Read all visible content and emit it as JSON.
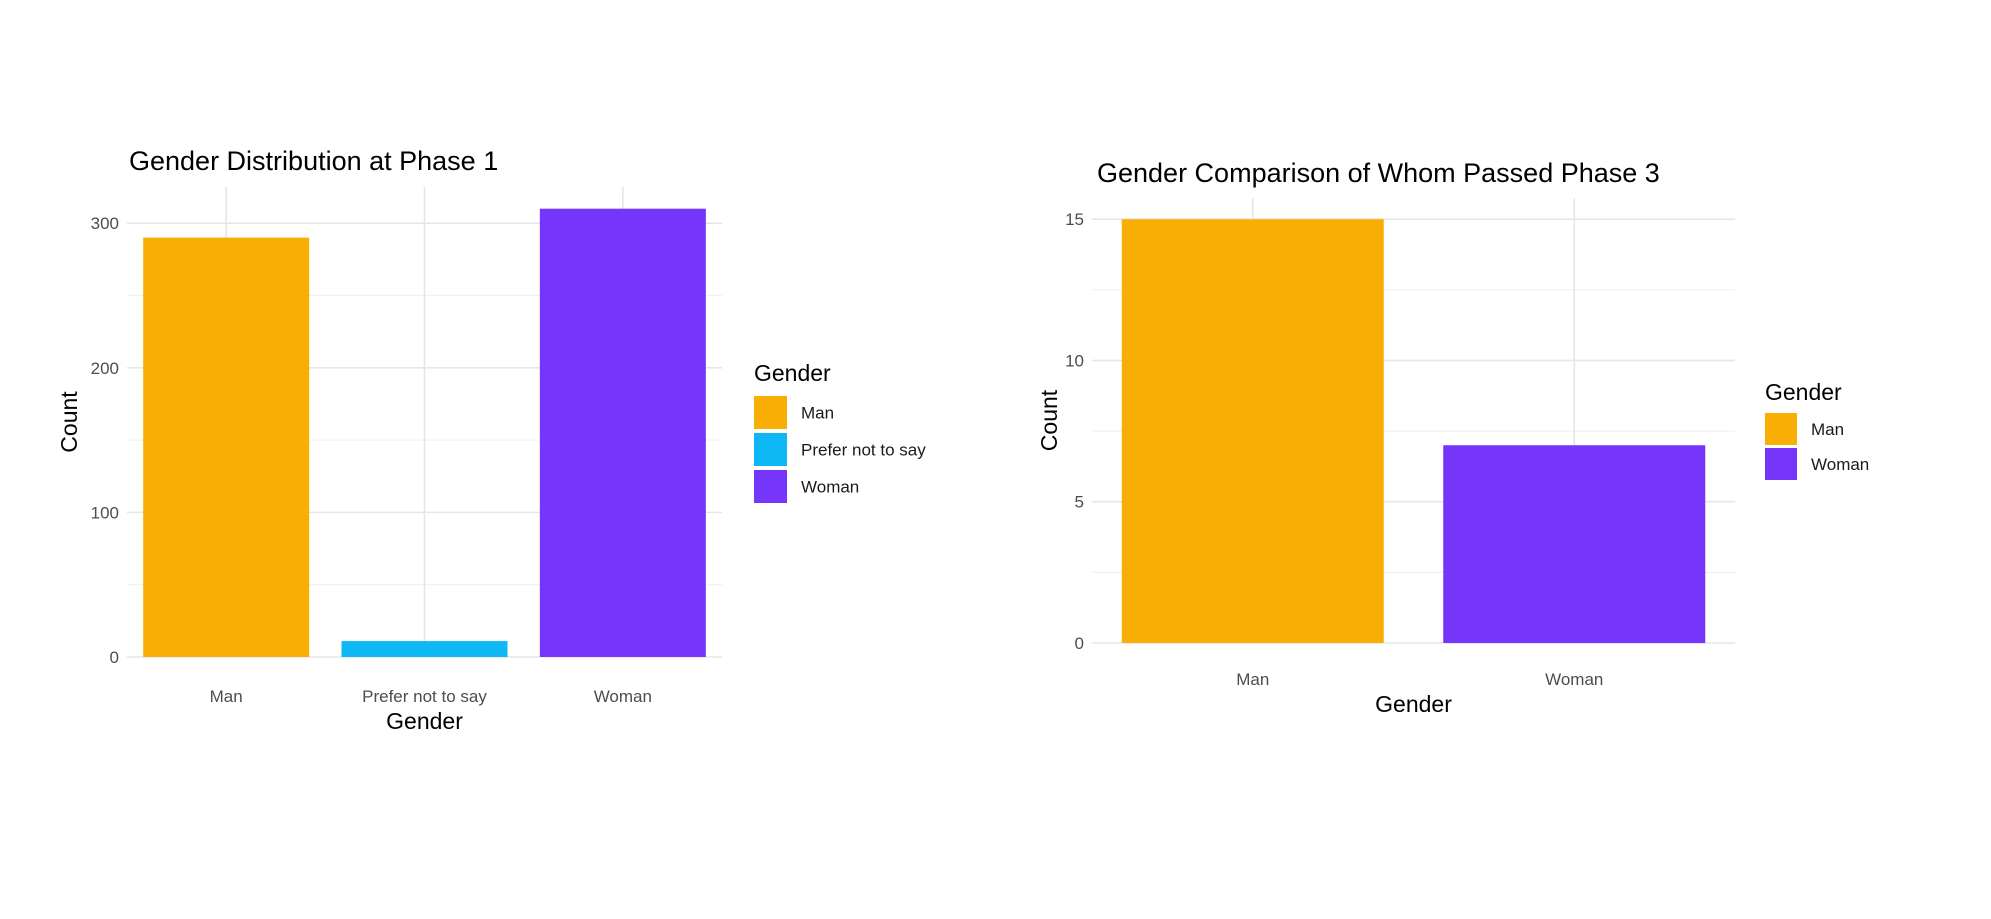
{
  "chart_data": [
    {
      "type": "bar",
      "title": "Gender Distribution at Phase 1",
      "xlabel": "Gender",
      "ylabel": "Count",
      "categories": [
        "Man",
        "Prefer not to say",
        "Woman"
      ],
      "values": [
        290,
        11,
        310
      ],
      "colors": [
        "#F9AE06",
        "#0DB8F5",
        "#7535FB"
      ],
      "ylim": [
        0,
        325
      ],
      "yticks": [
        0,
        100,
        200,
        300
      ],
      "grid": true,
      "legend": {
        "title": "Gender",
        "position": "right",
        "entries": [
          "Man",
          "Prefer not to say",
          "Woman"
        ]
      }
    },
    {
      "type": "bar",
      "title": "Gender Comparison of Whom Passed Phase 3",
      "xlabel": "Gender",
      "ylabel": "Count",
      "categories": [
        "Man",
        "Woman"
      ],
      "values": [
        15,
        7
      ],
      "colors": [
        "#F9AE06",
        "#7535FB"
      ],
      "ylim": [
        0,
        15.75
      ],
      "yticks": [
        0,
        5,
        10,
        15
      ],
      "grid": true,
      "legend": {
        "title": "Gender",
        "position": "right",
        "entries": [
          "Man",
          "Woman"
        ]
      }
    }
  ]
}
